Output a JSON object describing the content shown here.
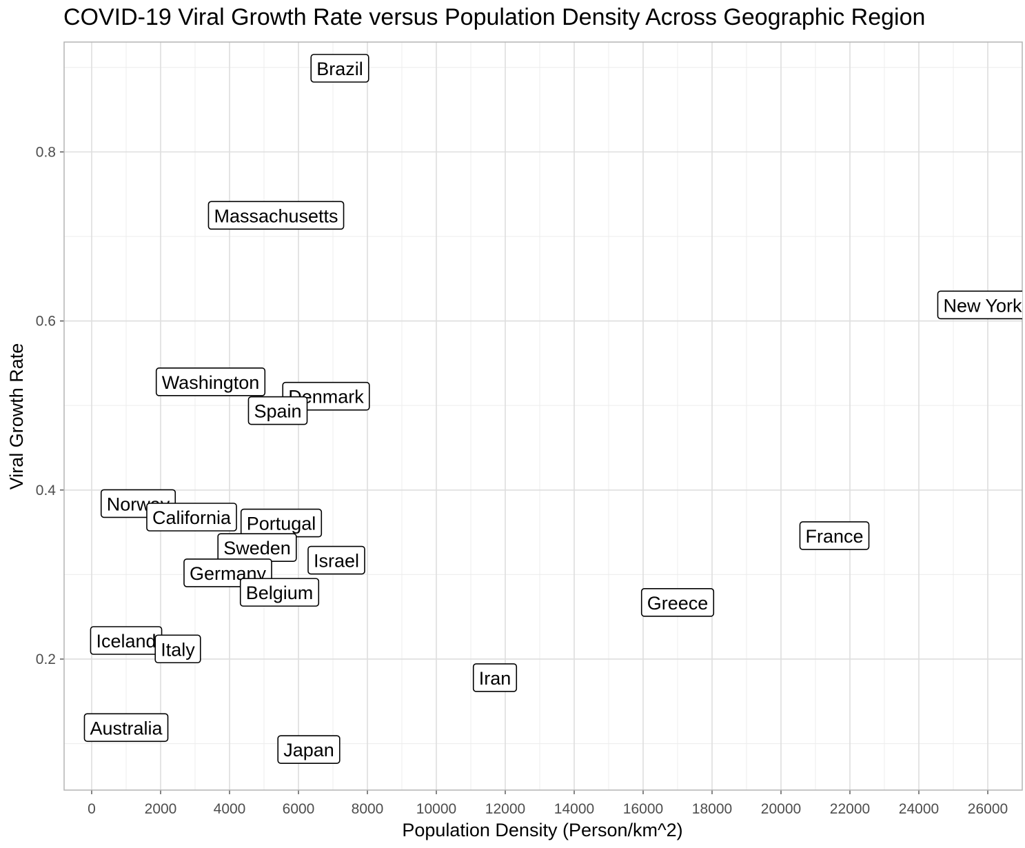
{
  "chart_data": {
    "type": "scatter",
    "title": "COVID-19 Viral Growth Rate versus Population Density Across Geographic Region",
    "xlabel": "Population Density (Person/km^2)",
    "ylabel": "Viral Growth Rate",
    "xlim": [
      -800,
      27000
    ],
    "ylim": [
      0.045,
      0.93
    ],
    "x_ticks": [
      0,
      2000,
      4000,
      6000,
      8000,
      10000,
      12000,
      14000,
      16000,
      18000,
      20000,
      22000,
      24000,
      26000
    ],
    "y_ticks": [
      0.2,
      0.4,
      0.6,
      0.8
    ],
    "y_tick_labels": [
      "0.2",
      "0.4",
      "0.6",
      "0.8"
    ],
    "grid": true,
    "points": [
      {
        "label": "Brazil",
        "x": 7200,
        "y": 0.899
      },
      {
        "label": "Massachusetts",
        "x": 5350,
        "y": 0.725
      },
      {
        "label": "New York",
        "x": 25850,
        "y": 0.619
      },
      {
        "label": "Washington",
        "x": 3450,
        "y": 0.528
      },
      {
        "label": "Denmark",
        "x": 6800,
        "y": 0.511
      },
      {
        "label": "Spain",
        "x": 5400,
        "y": 0.494
      },
      {
        "label": "Norway",
        "x": 1350,
        "y": 0.384
      },
      {
        "label": "California",
        "x": 2900,
        "y": 0.368
      },
      {
        "label": "Portugal",
        "x": 5500,
        "y": 0.361
      },
      {
        "label": "France",
        "x": 21550,
        "y": 0.346
      },
      {
        "label": "Sweden",
        "x": 4800,
        "y": 0.332
      },
      {
        "label": "Israel",
        "x": 7100,
        "y": 0.317
      },
      {
        "label": "Germany",
        "x": 3950,
        "y": 0.302
      },
      {
        "label": "Belgium",
        "x": 5450,
        "y": 0.279
      },
      {
        "label": "Greece",
        "x": 17000,
        "y": 0.267
      },
      {
        "label": "Iceland",
        "x": 1000,
        "y": 0.222
      },
      {
        "label": "Italy",
        "x": 2500,
        "y": 0.212
      },
      {
        "label": "Iran",
        "x": 11700,
        "y": 0.178
      },
      {
        "label": "Australia",
        "x": 1000,
        "y": 0.119
      },
      {
        "label": "Japan",
        "x": 6300,
        "y": 0.093
      }
    ]
  },
  "colors": {
    "panel_border": "#b3b3b3",
    "grid_major": "#dedede",
    "grid_minor": "#ececec",
    "tick_text": "#4d4d4d",
    "label_fill": "#ffffff",
    "label_border": "#000000"
  }
}
